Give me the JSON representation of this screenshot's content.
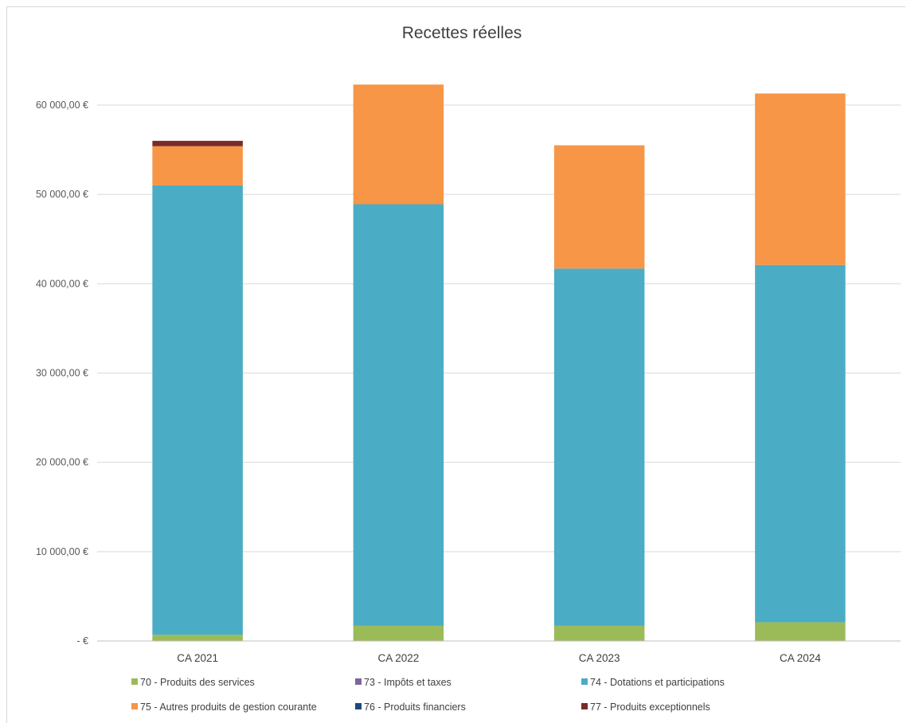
{
  "chart_data": {
    "type": "bar",
    "stacked": true,
    "title": "Recettes réelles",
    "xlabel": "",
    "ylabel": "",
    "ylim": [
      0,
      60000
    ],
    "yticks": [
      0,
      10000,
      20000,
      30000,
      40000,
      50000,
      60000
    ],
    "ytick_labels": [
      "- €",
      "10 000,00 €",
      "20 000,00 €",
      "30 000,00 €",
      "40 000,00 €",
      "50 000,00 €",
      "60 000,00 €"
    ],
    "categories": [
      "CA 2021",
      "CA 2022",
      "CA 2023",
      "CA 2024"
    ],
    "grid": true,
    "legend_position": "bottom",
    "series": [
      {
        "name": "70 - Produits des services",
        "color": "#9bbb59",
        "values": [
          700,
          1700,
          1700,
          2100
        ]
      },
      {
        "name": "73 - Impôts et taxes",
        "color": "#8064a2",
        "values": [
          0,
          0,
          0,
          0
        ]
      },
      {
        "name": "74 - Dotations et participations",
        "color": "#4bacc6",
        "values": [
          50300,
          47200,
          40000,
          40000
        ]
      },
      {
        "name": "75 - Autres produits de gestion courante",
        "color": "#f79646",
        "values": [
          4400,
          13400,
          13800,
          19200
        ]
      },
      {
        "name": "76 - Produits financiers",
        "color": "#1f497d",
        "values": [
          0,
          0,
          0,
          0
        ]
      },
      {
        "name": "77 - Produits exceptionnels",
        "color": "#772c2a",
        "values": [
          600,
          0,
          0,
          0
        ]
      }
    ]
  }
}
